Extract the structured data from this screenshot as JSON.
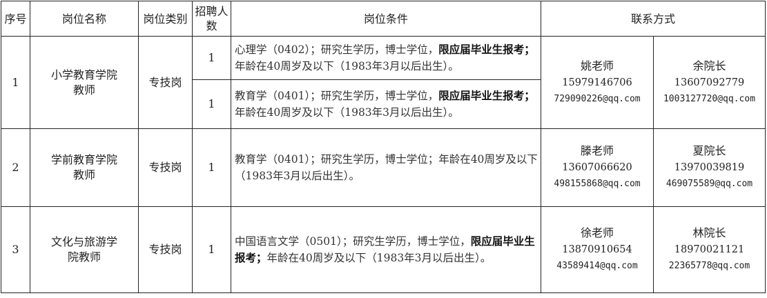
{
  "headers": {
    "no": "序号",
    "name": "岗位名称",
    "type": "岗位类别",
    "count": "招聘人数",
    "conditions": "岗位条件",
    "contact": "联系方式"
  },
  "rows": [
    {
      "no": "1",
      "name": "小学教育学院教师",
      "type": "专技岗",
      "positions": [
        {
          "count": "1",
          "conditions": [
            {
              "text": "心理学（0402）；研究生学历，博士学位，",
              "bold": false
            },
            {
              "text": "限应届毕业生报考；",
              "bold": true
            },
            {
              "text": "年龄在40周岁及以下（1983年3月以后出生）。",
              "bold": false
            }
          ]
        },
        {
          "count": "1",
          "conditions": [
            {
              "text": "教育学（0401）；研究生学历，博士学位，",
              "bold": false
            },
            {
              "text": "限应届毕业生报考；",
              "bold": true
            },
            {
              "text": "年龄在40周岁及以下（1983年3月以后出生）。",
              "bold": false
            }
          ]
        }
      ],
      "contacts": [
        {
          "name": "姚老师",
          "phone": "15979146706",
          "email": "729090226@qq.com"
        },
        {
          "name": "余院长",
          "phone": "13607092779",
          "email": "1003127720@qq.com"
        }
      ]
    },
    {
      "no": "2",
      "name": "学前教育学院教师",
      "type": "专技岗",
      "positions": [
        {
          "count": "1",
          "conditions": [
            {
              "text": "教育学（0401）；研究生学历，博士学位；年龄在40周岁及以下（1983年3月以后出生）。",
              "bold": false
            }
          ]
        }
      ],
      "contacts": [
        {
          "name": "滕老师",
          "phone": "13607066620",
          "email": "498155868@qq.com"
        },
        {
          "name": "夏院长",
          "phone": "13970039819",
          "email": "469075589@qq.com"
        }
      ]
    },
    {
      "no": "3",
      "name": "文化与旅游学院教师",
      "type": "专技岗",
      "positions": [
        {
          "count": "1",
          "conditions": [
            {
              "text": "中国语言文学（0501）；研究生学历，博士学位，",
              "bold": false
            },
            {
              "text": "限应届毕业生报考；",
              "bold": true
            },
            {
              "text": "年龄在40周岁及以下（1983年3月以后出生）。",
              "bold": false
            }
          ]
        }
      ],
      "contacts": [
        {
          "name": "徐老师",
          "phone": "13870910654",
          "email": "43589414@qq.com"
        },
        {
          "name": "林院长",
          "phone": "18970021121",
          "email": "22365778@qq.com"
        }
      ]
    }
  ]
}
